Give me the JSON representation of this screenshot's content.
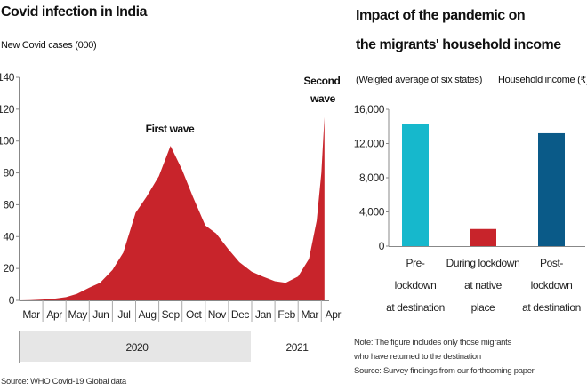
{
  "chart_data": [
    {
      "type": "area",
      "title": "Covid infection in India",
      "subtitle": "New Covid cases (000)",
      "ylim": [
        0,
        140
      ],
      "yticks": [
        0,
        20,
        40,
        60,
        80,
        100,
        120,
        140
      ],
      "month_labels": [
        "Mar",
        "Apr",
        "May",
        "Jun",
        "Jul",
        "Aug",
        "Sep",
        "Oct",
        "Nov",
        "Dec",
        "Jan",
        "Feb",
        "Mar",
        "Apr"
      ],
      "year_labels": [
        "2020",
        "2021"
      ],
      "annotations": {
        "first": "First wave",
        "second_line1": "Second",
        "second_line2": "wave"
      },
      "color": "#c8242b",
      "x": [
        "2020-03-01",
        "2020-03-15",
        "2020-04-01",
        "2020-04-15",
        "2020-05-01",
        "2020-05-15",
        "2020-06-01",
        "2020-06-15",
        "2020-07-01",
        "2020-07-15",
        "2020-08-01",
        "2020-08-15",
        "2020-09-01",
        "2020-09-16",
        "2020-10-01",
        "2020-10-15",
        "2020-11-01",
        "2020-11-15",
        "2020-12-01",
        "2020-12-15",
        "2021-01-01",
        "2021-01-15",
        "2021-02-01",
        "2021-02-15",
        "2021-03-01",
        "2021-03-15",
        "2021-03-25",
        "2021-04-01",
        "2021-04-05"
      ],
      "values": [
        0,
        0.1,
        0.5,
        1,
        2,
        4,
        8,
        11,
        19,
        30,
        55,
        65,
        78,
        97,
        82,
        65,
        47,
        42,
        32,
        24,
        18,
        15,
        12,
        11,
        15,
        26,
        50,
        80,
        115
      ],
      "source": "Source: WHO Covid-19 Global data"
    },
    {
      "type": "bar",
      "title_line1": "Impact of the pandemic on",
      "title_line2": "the migrants' household income",
      "subtitle": "(Weigted average of six states)",
      "ylabel": "Household income (₹)",
      "ylim": [
        0,
        16000
      ],
      "yticks": [
        "0",
        "4,000",
        "8,000",
        "12,000",
        "16,000"
      ],
      "categories": [
        [
          "Pre-",
          "lockdown",
          "at destination"
        ],
        [
          "During lockdown",
          "at native",
          "place"
        ],
        [
          "Post-",
          "lockdown",
          "at destination"
        ]
      ],
      "values": [
        14300,
        2000,
        13200
      ],
      "colors": [
        "#16b8cc",
        "#c8242b",
        "#0a5a88"
      ],
      "note_line1": "Note: The figure includes only those migrants",
      "note_line2": "who have returned to the destination",
      "source": "Source: Survey findings from our forthcoming paper"
    }
  ]
}
